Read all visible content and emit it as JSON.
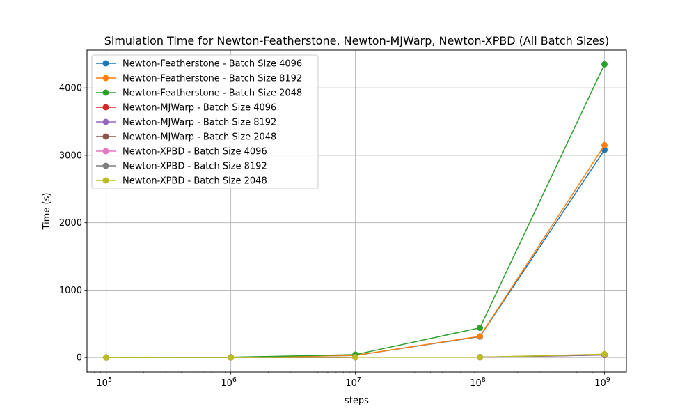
{
  "chart_data": {
    "type": "line",
    "title": "Simulation Time for Newton-Featherstone, Newton-MJWarp, Newton-XPBD (All Batch Sizes)",
    "xlabel": "steps",
    "ylabel": "Time (s)",
    "x_scale": "log",
    "x": [
      100000,
      1000000,
      10000000,
      100000000,
      1000000000
    ],
    "x_tick_labels": [
      {
        "base": "10",
        "exp": "5"
      },
      {
        "base": "10",
        "exp": "6"
      },
      {
        "base": "10",
        "exp": "7"
      },
      {
        "base": "10",
        "exp": "8"
      },
      {
        "base": "10",
        "exp": "9"
      }
    ],
    "xlim": [
      70000,
      1500000000
    ],
    "ylim": [
      -215,
      4560
    ],
    "y_ticks": [
      0,
      1000,
      2000,
      3000,
      4000
    ],
    "y_tick_labels": [
      "0",
      "1000",
      "2000",
      "3000",
      "4000"
    ],
    "grid": true,
    "legend_position": "top-left",
    "series": [
      {
        "name": "Newton-Featherstone - Batch Size 4096",
        "color": "#1f77b4",
        "values": [
          0.4,
          3.2,
          31,
          310,
          3080
        ]
      },
      {
        "name": "Newton-Featherstone - Batch Size 8192",
        "color": "#ff7f0e",
        "values": [
          0.4,
          3.3,
          32,
          315,
          3150
        ]
      },
      {
        "name": "Newton-Featherstone - Batch Size 2048",
        "color": "#2ca02c",
        "values": [
          0.5,
          4.5,
          44,
          440,
          4350
        ]
      },
      {
        "name": "Newton-MJWarp - Batch Size 4096",
        "color": "#d62728",
        "values": [
          0.05,
          0.4,
          4,
          4,
          40
        ]
      },
      {
        "name": "Newton-MJWarp - Batch Size 8192",
        "color": "#9467bd",
        "values": [
          0.05,
          0.4,
          4,
          4,
          38
        ]
      },
      {
        "name": "Newton-MJWarp - Batch Size 2048",
        "color": "#8c564b",
        "values": [
          0.05,
          0.4,
          4,
          4,
          42
        ]
      },
      {
        "name": "Newton-XPBD - Batch Size 4096",
        "color": "#e377c2",
        "values": [
          0.05,
          0.5,
          5,
          5,
          48
        ]
      },
      {
        "name": "Newton-XPBD - Batch Size 8192",
        "color": "#7f7f7f",
        "values": [
          0.05,
          0.5,
          5,
          5,
          45
        ]
      },
      {
        "name": "Newton-XPBD - Batch Size 2048",
        "color": "#bcbd22",
        "values": [
          0.05,
          0.5,
          5,
          5,
          50
        ]
      }
    ]
  }
}
